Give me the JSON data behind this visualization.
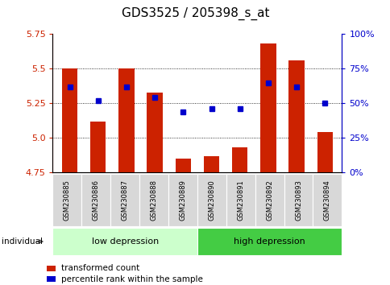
{
  "title": "GDS3525 / 205398_s_at",
  "samples": [
    "GSM230885",
    "GSM230886",
    "GSM230887",
    "GSM230888",
    "GSM230889",
    "GSM230890",
    "GSM230891",
    "GSM230892",
    "GSM230893",
    "GSM230894"
  ],
  "bar_values": [
    5.5,
    5.12,
    5.5,
    5.33,
    4.85,
    4.87,
    4.93,
    5.68,
    5.56,
    5.04
  ],
  "dot_pct": [
    62,
    52,
    62,
    54,
    44,
    46,
    46,
    65,
    62,
    50
  ],
  "bar_color": "#cc2200",
  "dot_color": "#0000cc",
  "ylim_left": [
    4.75,
    5.75
  ],
  "ylim_right": [
    0,
    100
  ],
  "yticks_left": [
    4.75,
    5.0,
    5.25,
    5.5,
    5.75
  ],
  "yticks_right": [
    0,
    25,
    50,
    75,
    100
  ],
  "ytick_labels_right": [
    "0%",
    "25%",
    "50%",
    "75%",
    "100%"
  ],
  "groups": [
    {
      "label": "low depression",
      "start": 0,
      "end": 4,
      "color": "#ccffcc"
    },
    {
      "label": "high depression",
      "start": 5,
      "end": 9,
      "color": "#44cc44"
    }
  ],
  "bar_bottom": 4.75,
  "legend_items": [
    {
      "label": "transformed count",
      "color": "#cc2200"
    },
    {
      "label": "percentile rank within the sample",
      "color": "#0000cc"
    }
  ],
  "individual_label": "individual",
  "title_fontsize": 11,
  "tick_fontsize": 8,
  "sample_fontsize": 6,
  "group_fontsize": 8,
  "legend_fontsize": 7.5
}
